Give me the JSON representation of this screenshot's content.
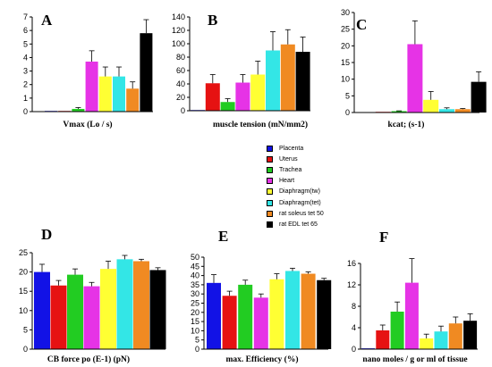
{
  "legend": [
    {
      "label": "Placenta",
      "color": "#1212e6"
    },
    {
      "label": "Uterus",
      "color": "#e61212"
    },
    {
      "label": "Trachea",
      "color": "#22cc22"
    },
    {
      "label": "Heart",
      "color": "#e633e6"
    },
    {
      "label": "Diaphragm(tw)",
      "color": "#ffff33"
    },
    {
      "label": "Diaphragm(tet)",
      "color": "#33e6e6"
    },
    {
      "label": "rat soleus tet 50",
      "color": "#f08a22"
    },
    {
      "label": "rat EDL tet 65",
      "color": "#000000"
    }
  ],
  "chart_data": [
    {
      "type": "bar",
      "panel": "A",
      "xlabel": "Vmax (Lo / s)",
      "ylim": [
        0,
        7
      ],
      "yticks": [
        0,
        1,
        2,
        3,
        4,
        5,
        6,
        7
      ],
      "series": [
        {
          "name": "Placenta",
          "value": 0.05,
          "error": 0
        },
        {
          "name": "Uterus",
          "value": 0.05,
          "error": 0
        },
        {
          "name": "Trachea",
          "value": 0.2,
          "error": 0.1
        },
        {
          "name": "Heart",
          "value": 3.7,
          "error": 0.8
        },
        {
          "name": "Diaphragm(tw)",
          "value": 2.6,
          "error": 0.7
        },
        {
          "name": "Diaphragm(tet)",
          "value": 2.6,
          "error": 0.7
        },
        {
          "name": "rat soleus tet 50",
          "value": 1.7,
          "error": 0.5
        },
        {
          "name": "rat EDL tet 65",
          "value": 5.8,
          "error": 1.0
        }
      ]
    },
    {
      "type": "bar",
      "panel": "B",
      "xlabel": "muscle tension (mN/mm2)",
      "ylim": [
        0,
        140
      ],
      "yticks": [
        0,
        20,
        40,
        60,
        80,
        100,
        120,
        140
      ],
      "series": [
        {
          "name": "Placenta",
          "value": 1,
          "error": 0
        },
        {
          "name": "Uterus",
          "value": 41,
          "error": 13
        },
        {
          "name": "Trachea",
          "value": 13,
          "error": 5
        },
        {
          "name": "Heart",
          "value": 42,
          "error": 12
        },
        {
          "name": "Diaphragm(tw)",
          "value": 54,
          "error": 20
        },
        {
          "name": "Diaphragm(tet)",
          "value": 90,
          "error": 28
        },
        {
          "name": "rat soleus tet 50",
          "value": 99,
          "error": 22
        },
        {
          "name": "rat EDL tet 65",
          "value": 88,
          "error": 22
        }
      ]
    },
    {
      "type": "bar",
      "panel": "C",
      "xlabel": "kcat; (s-1)",
      "ylim": [
        0,
        30
      ],
      "yticks": [
        0,
        5,
        10,
        15,
        20,
        25,
        30
      ],
      "series": [
        {
          "name": "Placenta",
          "value": 0.1,
          "error": 0
        },
        {
          "name": "Uterus",
          "value": 0.2,
          "error": 0
        },
        {
          "name": "Trachea",
          "value": 0.4,
          "error": 0.1
        },
        {
          "name": "Heart",
          "value": 20.5,
          "error": 7
        },
        {
          "name": "Diaphragm(tw)",
          "value": 3.8,
          "error": 2.5
        },
        {
          "name": "Diaphragm(tet)",
          "value": 1.0,
          "error": 0.4
        },
        {
          "name": "rat soleus tet 50",
          "value": 1.0,
          "error": 0.2
        },
        {
          "name": "rat EDL tet 65",
          "value": 9.2,
          "error": 3.0
        }
      ]
    },
    {
      "type": "bar",
      "panel": "D",
      "xlabel": "CB force po (E-1) (pN)",
      "ylim": [
        0,
        25
      ],
      "yticks": [
        0,
        5,
        10,
        15,
        20,
        25
      ],
      "series": [
        {
          "name": "Placenta",
          "value": 20.0,
          "error": 2.0
        },
        {
          "name": "Uterus",
          "value": 16.5,
          "error": 1.3
        },
        {
          "name": "Trachea",
          "value": 19.3,
          "error": 1.5
        },
        {
          "name": "Heart",
          "value": 16.3,
          "error": 1.0
        },
        {
          "name": "Diaphragm(tw)",
          "value": 20.8,
          "error": 2.0
        },
        {
          "name": "Diaphragm(tet)",
          "value": 23.3,
          "error": 1.0
        },
        {
          "name": "rat soleus tet 50",
          "value": 22.8,
          "error": 0.5
        },
        {
          "name": "rat EDL tet 65",
          "value": 20.5,
          "error": 0.6
        }
      ]
    },
    {
      "type": "bar",
      "panel": "E",
      "xlabel": "max. Efficiency (%)",
      "ylim": [
        0,
        50
      ],
      "yticks": [
        0,
        5,
        10,
        15,
        20,
        25,
        30,
        35,
        40,
        45,
        50
      ],
      "series": [
        {
          "name": "Placenta",
          "value": 36,
          "error": 4.5
        },
        {
          "name": "Uterus",
          "value": 29,
          "error": 2.5
        },
        {
          "name": "Trachea",
          "value": 35,
          "error": 2.5
        },
        {
          "name": "Heart",
          "value": 28,
          "error": 2.0
        },
        {
          "name": "Diaphragm(tw)",
          "value": 38,
          "error": 3.0
        },
        {
          "name": "Diaphragm(tet)",
          "value": 42.5,
          "error": 1.5
        },
        {
          "name": "rat soleus tet 50",
          "value": 41,
          "error": 1.0
        },
        {
          "name": "rat EDL tet 65",
          "value": 37.5,
          "error": 1.0
        }
      ]
    },
    {
      "type": "bar",
      "panel": "F",
      "xlabel": "nano moles / g or ml of tissue",
      "ylim": [
        0,
        16
      ],
      "yticks": [
        0,
        4,
        8,
        12,
        16
      ],
      "series": [
        {
          "name": "Placenta",
          "value": 0.15,
          "error": 0
        },
        {
          "name": "Uterus",
          "value": 3.5,
          "error": 1.0
        },
        {
          "name": "Trachea",
          "value": 7.0,
          "error": 1.8
        },
        {
          "name": "Heart",
          "value": 12.4,
          "error": 4.5
        },
        {
          "name": "Diaphragm(tw)",
          "value": 2.0,
          "error": 0.8
        },
        {
          "name": "Diaphragm(tet)",
          "value": 3.3,
          "error": 1.0
        },
        {
          "name": "rat soleus tet 50",
          "value": 4.8,
          "error": 1.2
        },
        {
          "name": "rat EDL tet 65",
          "value": 5.3,
          "error": 1.3
        }
      ]
    }
  ]
}
